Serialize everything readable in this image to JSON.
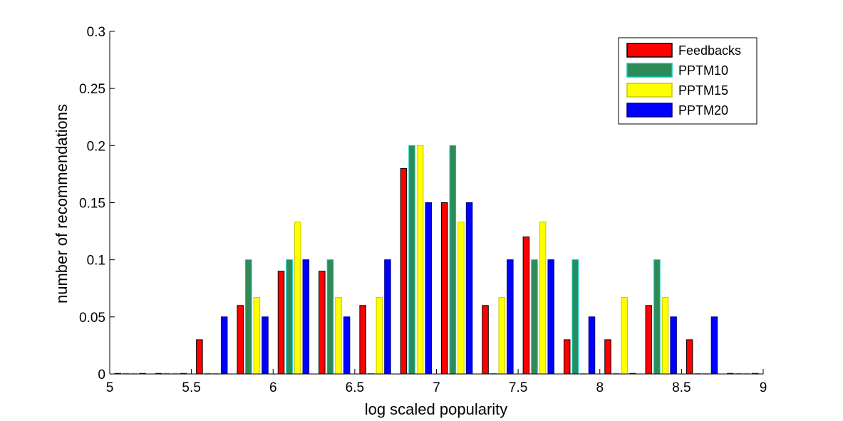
{
  "chart_data": {
    "type": "bar",
    "title": "",
    "xlabel": "log scaled popularity",
    "ylabel": "number of recommendations",
    "xlim": [
      5,
      9
    ],
    "ylim": [
      0,
      0.3
    ],
    "x_ticks": [
      "5",
      "5.5",
      "6",
      "6.5",
      "7",
      "7.5",
      "8",
      "8.5",
      "9"
    ],
    "y_ticks": [
      "0",
      "0.05",
      "0.1",
      "0.15",
      "0.2",
      "0.25",
      "0.3"
    ],
    "grid": false,
    "legend_position": "top-right",
    "x": [
      5.125,
      5.375,
      5.625,
      5.875,
      6.125,
      6.375,
      6.625,
      6.875,
      7.125,
      7.375,
      7.625,
      7.875,
      8.125,
      8.375,
      8.625,
      8.875
    ],
    "series": [
      {
        "name": "Feedbacks",
        "color": "#ff0000",
        "edge": "#000000",
        "values": [
          0,
          0,
          0.03,
          0.06,
          0.09,
          0.09,
          0.06,
          0.18,
          0.15,
          0.06,
          0.12,
          0.03,
          0.03,
          0.06,
          0.03,
          0
        ]
      },
      {
        "name": "PPTM10",
        "color": "#2e8b57",
        "edge": "#00c8c8",
        "values": [
          0,
          0,
          0,
          0.1,
          0.1,
          0.1,
          0,
          0.2,
          0.2,
          0,
          0.1,
          0.1,
          0,
          0.1,
          0,
          0
        ]
      },
      {
        "name": "PPTM15",
        "color": "#ffff00",
        "edge": "#c8c800",
        "values": [
          0,
          0,
          0,
          0.067,
          0.133,
          0.067,
          0.067,
          0.2,
          0.133,
          0.067,
          0.133,
          0,
          0.067,
          0.067,
          0,
          0
        ]
      },
      {
        "name": "PPTM20",
        "color": "#0000ff",
        "edge": "#000080",
        "values": [
          0,
          0,
          0.05,
          0.05,
          0.1,
          0.05,
          0.1,
          0.15,
          0.15,
          0.1,
          0.1,
          0.05,
          0,
          0.05,
          0.05,
          0
        ]
      }
    ]
  }
}
